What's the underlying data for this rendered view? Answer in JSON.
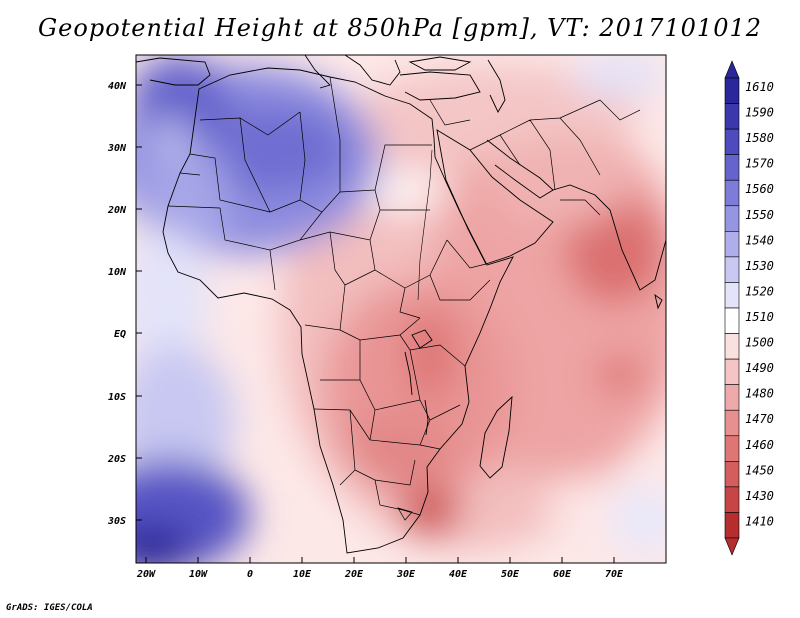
{
  "title": "Geopotential Height at 850hPa [gpm], VT: 2017101012",
  "credit": "GrADS: IGES/COLA",
  "lat_labels": [
    "40N",
    "30N",
    "20N",
    "10N",
    "EQ",
    "10S",
    "20S",
    "30S"
  ],
  "lon_labels": [
    "20W",
    "10W",
    "0",
    "10E",
    "20E",
    "30E",
    "40E",
    "50E",
    "60E",
    "70E"
  ],
  "colorbar": {
    "labels": [
      "1610",
      "1590",
      "1580",
      "1570",
      "1560",
      "1550",
      "1540",
      "1530",
      "1520",
      "1510",
      "1500",
      "1490",
      "1480",
      "1470",
      "1460",
      "1450",
      "1430",
      "1410"
    ],
    "colors": [
      "#2a279a",
      "#3b38ae",
      "#4e4bbe",
      "#6563cc",
      "#7d7cd8",
      "#9695e2",
      "#afaeea",
      "#c8c8f2",
      "#e3e3f9",
      "#ffffff",
      "#fbe0e0",
      "#f5c4c4",
      "#eeaaaa",
      "#e69090",
      "#de7676",
      "#d45d5d",
      "#c84545",
      "#b52d2d"
    ]
  }
}
